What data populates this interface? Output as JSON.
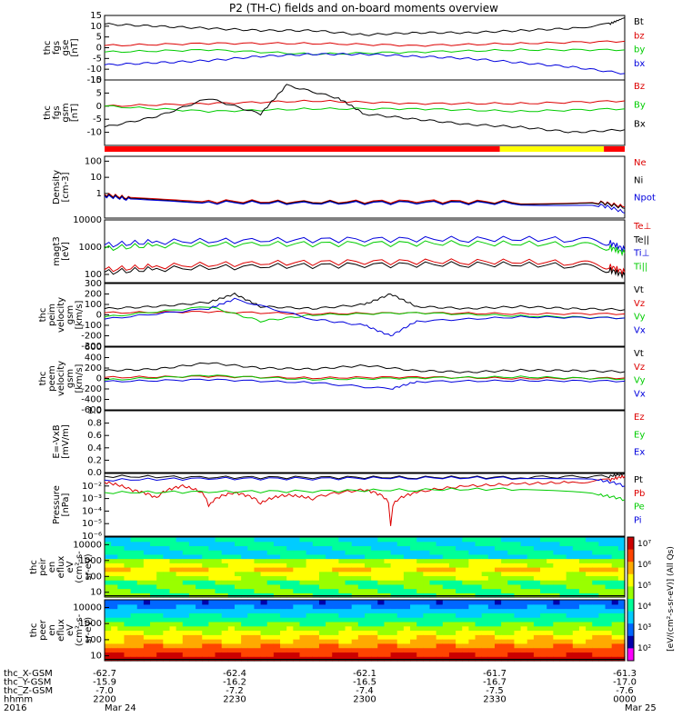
{
  "title": "P2 (TH-C) fields and on-board moments overview",
  "colors": {
    "black": "#000000",
    "red": "#dd0000",
    "green": "#00cc00",
    "blue": "#0000dd",
    "yellow": "#ffff00",
    "bar_red": "#ff0000"
  },
  "chart_data": [
    {
      "type": "line",
      "id": "fgs",
      "ylabel": [
        "thc",
        "fgs",
        "gse",
        "[nT]"
      ],
      "ylim": [
        -15,
        15
      ],
      "ticks": [
        "15",
        "10",
        "5",
        "0",
        "-5",
        "-10",
        "-15"
      ],
      "tick_values": [
        15,
        10,
        5,
        0,
        -5,
        -10,
        -15
      ],
      "legend": [
        {
          "label": "Bt",
          "color": "black"
        },
        {
          "label": "bz",
          "color": "red"
        },
        {
          "label": "by",
          "color": "green"
        },
        {
          "label": "bx",
          "color": "blue"
        }
      ],
      "series": [
        {
          "name": "Bt",
          "color": "black",
          "x": [
            0,
            0.1,
            0.2,
            0.3,
            0.4,
            0.5,
            0.6,
            0.7,
            0.8,
            0.9,
            0.97,
            1
          ],
          "values": [
            11,
            10,
            9,
            8,
            8,
            6,
            7,
            7,
            8,
            9,
            11,
            14
          ]
        },
        {
          "name": "bz",
          "color": "red",
          "x": [
            0,
            0.2,
            0.4,
            0.6,
            0.8,
            1
          ],
          "values": [
            1,
            2,
            2,
            1,
            2,
            3
          ]
        },
        {
          "name": "by",
          "color": "green",
          "x": [
            0,
            0.2,
            0.4,
            0.6,
            0.8,
            1
          ],
          "values": [
            -2,
            -1,
            -3,
            -2,
            -1,
            -1
          ]
        },
        {
          "name": "bx",
          "color": "blue",
          "x": [
            0,
            0.1,
            0.2,
            0.3,
            0.4,
            0.5,
            0.6,
            0.7,
            0.8,
            0.9,
            1
          ],
          "values": [
            -8,
            -7,
            -6,
            -4,
            -3,
            -3,
            -4,
            -5,
            -7,
            -9,
            -12
          ]
        }
      ]
    },
    {
      "type": "line",
      "id": "fgs_gsm",
      "ylabel": [
        "thc",
        "fgs",
        "gsm",
        "[nT]"
      ],
      "ylim": [
        -15,
        10
      ],
      "ticks": [
        "10",
        "5",
        "0",
        "-5",
        "-10"
      ],
      "tick_values": [
        10,
        5,
        0,
        -5,
        -10
      ],
      "legend": [
        {
          "label": "Bz",
          "color": "red"
        },
        {
          "label": "By",
          "color": "green"
        },
        {
          "label": "Bx",
          "color": "black"
        }
      ],
      "series": [
        {
          "name": "Bz",
          "color": "red",
          "x": [
            0,
            0.2,
            0.4,
            0.6,
            0.8,
            1
          ],
          "values": [
            0,
            1,
            2,
            1,
            1,
            2
          ]
        },
        {
          "name": "By",
          "color": "green",
          "x": [
            0,
            0.2,
            0.4,
            0.6,
            0.8,
            1
          ],
          "values": [
            0,
            -2,
            -1,
            -1,
            -2,
            -1
          ]
        },
        {
          "name": "Bx",
          "color": "black",
          "x": [
            0,
            0.1,
            0.2,
            0.3,
            0.35,
            0.45,
            0.5,
            0.6,
            0.7,
            0.8,
            0.9,
            1
          ],
          "values": [
            -8,
            -4,
            3,
            -3,
            8,
            3,
            -3,
            -5,
            -7,
            -8,
            -10,
            -9
          ]
        }
      ]
    },
    {
      "type": "bar",
      "id": "mode_bar",
      "segments": [
        {
          "from": 0,
          "to": 0.76,
          "color": "bar_red"
        },
        {
          "from": 0.76,
          "to": 0.96,
          "color": "yellow"
        },
        {
          "from": 0.96,
          "to": 1,
          "color": "bar_red"
        }
      ]
    },
    {
      "type": "line",
      "id": "density",
      "scale": "log",
      "ylabel": [
        "Density",
        "[cm-3]"
      ],
      "ylim": [
        0.03,
        200
      ],
      "ticks": [
        "100",
        "10",
        "1"
      ],
      "tick_values": [
        100,
        10,
        1
      ],
      "legend": [
        {
          "label": "Ne",
          "color": "red"
        },
        {
          "label": "Ni",
          "color": "black"
        },
        {
          "label": "Npot",
          "color": "blue"
        }
      ],
      "series": [
        {
          "name": "Ne",
          "color": "red",
          "x": [
            0,
            0.05,
            0.2,
            0.4,
            0.6,
            0.8,
            0.95,
            1
          ],
          "values": [
            0.9,
            0.5,
            0.35,
            0.3,
            0.35,
            0.3,
            0.3,
            0.15
          ]
        },
        {
          "name": "Ni",
          "color": "black",
          "x": [
            0,
            0.05,
            0.2,
            0.4,
            0.6,
            0.8,
            0.95,
            1
          ],
          "values": [
            0.8,
            0.45,
            0.3,
            0.28,
            0.3,
            0.28,
            0.28,
            0.12
          ]
        },
        {
          "name": "Npot",
          "color": "blue",
          "x": [
            0,
            0.05,
            0.2,
            0.4,
            0.6,
            0.8,
            0.95,
            1
          ],
          "values": [
            0.7,
            0.4,
            0.28,
            0.25,
            0.28,
            0.25,
            0.2,
            0.06
          ]
        }
      ]
    },
    {
      "type": "line",
      "id": "temperature",
      "scale": "log",
      "ylabel": [
        "magt3",
        "[eV]"
      ],
      "ylim": [
        50,
        10000
      ],
      "ticks": [
        "10000",
        "1000",
        "100"
      ],
      "tick_values": [
        10000,
        1000,
        100
      ],
      "legend": [
        {
          "label": "Te⊥",
          "color": "red"
        },
        {
          "label": "Te||",
          "color": "black"
        },
        {
          "label": "Ti⊥",
          "color": "blue"
        },
        {
          "label": "Ti||",
          "color": "green"
        }
      ],
      "series": [
        {
          "name": "Te⊥",
          "color": "red",
          "x": [
            0,
            0.1,
            0.3,
            0.5,
            0.7,
            0.9,
            0.97,
            1
          ],
          "values": [
            150,
            200,
            260,
            300,
            300,
            280,
            200,
            120
          ]
        },
        {
          "name": "Te||",
          "color": "black",
          "x": [
            0,
            0.1,
            0.3,
            0.5,
            0.7,
            0.9,
            0.97,
            1
          ],
          "values": [
            120,
            160,
            200,
            230,
            240,
            220,
            150,
            90
          ]
        },
        {
          "name": "Ti⊥",
          "color": "blue",
          "x": [
            0,
            0.1,
            0.3,
            0.5,
            0.7,
            0.9,
            0.97,
            1
          ],
          "values": [
            1200,
            1600,
            1800,
            2000,
            2000,
            2000,
            1500,
            800
          ]
        },
        {
          "name": "Ti||",
          "color": "green",
          "x": [
            0,
            0.1,
            0.3,
            0.5,
            0.7,
            0.9,
            0.97,
            1
          ],
          "values": [
            900,
            1200,
            1300,
            1400,
            1400,
            1300,
            1000,
            600
          ]
        }
      ]
    },
    {
      "type": "line",
      "id": "peim_velocity",
      "ylabel": [
        "thc",
        "peim",
        "velocity",
        "gsm",
        "[km/s]"
      ],
      "ylim": [
        -300,
        300
      ],
      "ticks": [
        "300",
        "200",
        "100",
        "0",
        "-100",
        "-200",
        "-300"
      ],
      "tick_values": [
        300,
        200,
        100,
        0,
        -100,
        -200,
        -300
      ],
      "legend": [
        {
          "label": "Vt",
          "color": "black"
        },
        {
          "label": "Vz",
          "color": "red"
        },
        {
          "label": "Vy",
          "color": "green"
        },
        {
          "label": "Vx",
          "color": "blue"
        }
      ],
      "series": [
        {
          "name": "Vt",
          "color": "black",
          "x": [
            0,
            0.1,
            0.2,
            0.25,
            0.3,
            0.4,
            0.5,
            0.55,
            0.6,
            0.7,
            0.8,
            0.9,
            1
          ],
          "values": [
            60,
            80,
            120,
            200,
            80,
            60,
            100,
            200,
            80,
            60,
            80,
            60,
            50
          ]
        },
        {
          "name": "Vz",
          "color": "red",
          "x": [
            0,
            0.2,
            0.4,
            0.6,
            0.8,
            1
          ],
          "values": [
            20,
            30,
            10,
            20,
            10,
            10
          ]
        },
        {
          "name": "Vy",
          "color": "green",
          "x": [
            0,
            0.2,
            0.3,
            0.4,
            0.6,
            0.8,
            1
          ],
          "values": [
            -20,
            80,
            -60,
            0,
            20,
            -10,
            -30
          ]
        },
        {
          "name": "Vx",
          "color": "blue",
          "x": [
            0,
            0.2,
            0.25,
            0.4,
            0.5,
            0.55,
            0.6,
            0.8,
            1
          ],
          "values": [
            -40,
            60,
            150,
            -40,
            -100,
            -200,
            -60,
            -20,
            -30
          ]
        }
      ]
    },
    {
      "type": "line",
      "id": "peem_velocity",
      "ylabel": [
        "thc",
        "peem",
        "velocity",
        "gsm",
        "[km/s]"
      ],
      "ylim": [
        -600,
        600
      ],
      "ticks": [
        "600",
        "400",
        "200",
        "0",
        "-200",
        "-400",
        "-600"
      ],
      "tick_values": [
        600,
        400,
        200,
        0,
        -200,
        -400,
        -600
      ],
      "legend": [
        {
          "label": "Vt",
          "color": "black"
        },
        {
          "label": "Vz",
          "color": "red"
        },
        {
          "label": "Vy",
          "color": "green"
        },
        {
          "label": "Vx",
          "color": "blue"
        }
      ],
      "series": [
        {
          "name": "Vt",
          "color": "black",
          "x": [
            0,
            0.1,
            0.2,
            0.3,
            0.4,
            0.5,
            0.6,
            0.7,
            0.8,
            0.9,
            1
          ],
          "values": [
            150,
            180,
            300,
            200,
            180,
            250,
            150,
            120,
            160,
            150,
            130
          ]
        },
        {
          "name": "Vz",
          "color": "red",
          "x": [
            0,
            0.2,
            0.4,
            0.6,
            0.8,
            1
          ],
          "values": [
            20,
            40,
            10,
            30,
            0,
            10
          ]
        },
        {
          "name": "Vy",
          "color": "green",
          "x": [
            0,
            0.2,
            0.4,
            0.6,
            0.8,
            1
          ],
          "values": [
            -30,
            60,
            -20,
            10,
            30,
            -10
          ]
        },
        {
          "name": "Vx",
          "color": "blue",
          "x": [
            0,
            0.2,
            0.4,
            0.55,
            0.6,
            0.8,
            1
          ],
          "values": [
            -60,
            -20,
            -80,
            -200,
            -60,
            -40,
            -50
          ]
        }
      ]
    },
    {
      "type": "line",
      "id": "efield",
      "ylabel": [
        "E=-VxB",
        "[mV/m]"
      ],
      "ylim": [
        0,
        1
      ],
      "ticks": [
        "1.0",
        "0.8",
        "0.6",
        "0.4",
        "0.2",
        "0.0"
      ],
      "tick_values": [
        1.0,
        0.8,
        0.6,
        0.4,
        0.2,
        0.0
      ],
      "legend": [
        {
          "label": "Ez",
          "color": "red"
        },
        {
          "label": "Ey",
          "color": "green"
        },
        {
          "label": "Ex",
          "color": "blue"
        }
      ],
      "series": []
    },
    {
      "type": "line",
      "id": "pressure",
      "scale": "log",
      "ylabel": [
        "Pressure",
        "[nPa]"
      ],
      "ylim": [
        1e-06,
        0.1
      ],
      "ticks": [
        "10⁻²",
        "10⁻³",
        "10⁻⁴",
        "10⁻⁵",
        "10⁻⁶"
      ],
      "tick_values": [
        0.01,
        0.001,
        0.0001,
        1e-05,
        1e-06
      ],
      "legend": [
        {
          "label": "Pt",
          "color": "black"
        },
        {
          "label": "Pb",
          "color": "red"
        },
        {
          "label": "Pe",
          "color": "green"
        },
        {
          "label": "Pi",
          "color": "blue"
        }
      ],
      "series": [
        {
          "name": "Pt",
          "color": "black",
          "x": [
            0,
            0.2,
            0.4,
            0.6,
            0.8,
            0.97,
            1
          ],
          "values": [
            0.06,
            0.05,
            0.05,
            0.05,
            0.05,
            0.06,
            0.09
          ]
        },
        {
          "name": "Pb",
          "color": "red",
          "x": [
            0,
            0.05,
            0.1,
            0.15,
            0.2,
            0.25,
            0.3,
            0.35,
            0.4,
            0.5,
            0.55,
            0.6,
            0.7,
            0.8,
            0.9,
            0.97,
            1
          ],
          "values": [
            0.02,
            0.005,
            0.001,
            0.01,
            0.0002,
            0.003,
            0.0004,
            0.002,
            0.001,
            0.005,
            8e-06,
            0.003,
            0.01,
            0.015,
            0.02,
            0.03,
            0.06
          ]
        },
        {
          "name": "Pe",
          "color": "green",
          "x": [
            0,
            0.2,
            0.4,
            0.6,
            0.8,
            0.95,
            1
          ],
          "values": [
            0.003,
            0.0035,
            0.004,
            0.005,
            0.006,
            0.002,
            0.0008
          ]
        },
        {
          "name": "Pi",
          "color": "blue",
          "x": [
            0,
            0.2,
            0.4,
            0.6,
            0.8,
            0.95,
            1
          ],
          "values": [
            0.03,
            0.04,
            0.04,
            0.045,
            0.045,
            0.03,
            0.01
          ]
        }
      ]
    },
    {
      "type": "heatmap",
      "id": "peir_spectrum",
      "ylabel": [
        "thc",
        "peir",
        "en",
        "eflux",
        "eV",
        "(cm²-s-",
        "sr-eV)"
      ],
      "scale": "log",
      "ylim": [
        5,
        30000
      ],
      "ticks": [
        "10000",
        "1000",
        "100",
        "10"
      ],
      "tick_values": [
        10000,
        1000,
        100,
        10
      ]
    },
    {
      "type": "heatmap",
      "id": "peer_spectrum",
      "ylabel": [
        "thc",
        "peer",
        "en",
        "eflux",
        "eV",
        "(cm²-s-",
        "sr-eV)"
      ],
      "scale": "log",
      "ylim": [
        5,
        30000
      ],
      "ticks": [
        "10000",
        "1000",
        "100",
        "10"
      ],
      "tick_values": [
        10000,
        1000,
        100,
        10
      ]
    }
  ],
  "colorbar": {
    "ticks": [
      "10⁷",
      "10⁶",
      "10⁵",
      "10⁴",
      "10³",
      "10²"
    ],
    "label": "[eV/(cm²-s-sr-eV)] (All Qs)"
  },
  "x_axis": {
    "rows": [
      {
        "name": "thc_X-GSM",
        "values": [
          "-62.7",
          "-62.4",
          "-62.1",
          "-61.7",
          "-61.3"
        ]
      },
      {
        "name": "thc_Y-GSM",
        "values": [
          "-15.9",
          "-16.2",
          "-16.5",
          "-16.7",
          "-17.0"
        ]
      },
      {
        "name": "thc_Z-GSM",
        "values": [
          "-7.0",
          "-7.2",
          "-7.4",
          "-7.5",
          "-7.6"
        ]
      },
      {
        "name": "hhmm",
        "values": [
          "2200",
          "2230",
          "2300",
          "2330",
          "0000"
        ]
      },
      {
        "name": "2016",
        "values": [
          "Mar 24",
          "",
          "",
          "",
          "Mar 25"
        ]
      }
    ]
  }
}
